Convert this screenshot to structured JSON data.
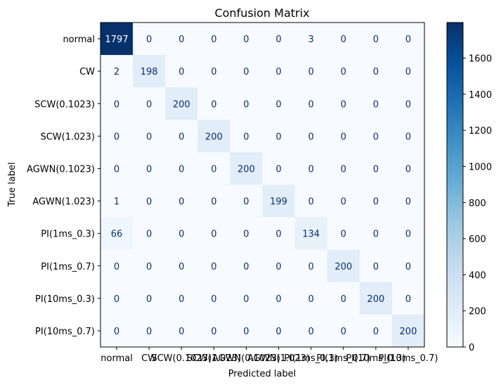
{
  "chart_data": {
    "type": "heatmap",
    "title": "Confusion Matrix",
    "xlabel": "Predicted label",
    "ylabel": "True label",
    "labels": [
      "normal",
      "CW",
      "SCW(0.1023)",
      "SCW(1.023)",
      "AGWN(0.1023)",
      "AGWN(1.023)",
      "PI(1ms_0.3)",
      "PI(1ms_0.7)",
      "PI(10ms_0.3)",
      "PI(10ms_0.7)"
    ],
    "matrix": [
      [
        1797,
        0,
        0,
        0,
        0,
        0,
        3,
        0,
        0,
        0
      ],
      [
        2,
        198,
        0,
        0,
        0,
        0,
        0,
        0,
        0,
        0
      ],
      [
        0,
        0,
        200,
        0,
        0,
        0,
        0,
        0,
        0,
        0
      ],
      [
        0,
        0,
        0,
        200,
        0,
        0,
        0,
        0,
        0,
        0
      ],
      [
        0,
        0,
        0,
        0,
        200,
        0,
        0,
        0,
        0,
        0
      ],
      [
        1,
        0,
        0,
        0,
        0,
        199,
        0,
        0,
        0,
        0
      ],
      [
        66,
        0,
        0,
        0,
        0,
        0,
        134,
        0,
        0,
        0
      ],
      [
        0,
        0,
        0,
        0,
        0,
        0,
        0,
        200,
        0,
        0
      ],
      [
        0,
        0,
        0,
        0,
        0,
        0,
        0,
        0,
        200,
        0
      ],
      [
        0,
        0,
        0,
        0,
        0,
        0,
        0,
        0,
        0,
        200
      ]
    ],
    "colormap": "Blues",
    "vmin": 0,
    "vmax": 1797,
    "colorbar_ticks": [
      0,
      200,
      400,
      600,
      800,
      1000,
      1200,
      1400,
      1600
    ]
  }
}
